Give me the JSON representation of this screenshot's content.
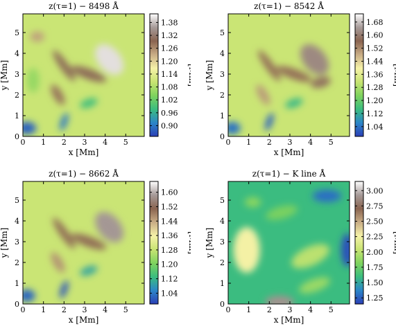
{
  "figure": {
    "colormap": [
      "#2b3fb6",
      "#2c86c8",
      "#3bbd7f",
      "#7fd35e",
      "#c8e472",
      "#f6f2a8",
      "#c9ad86",
      "#8a6450",
      "#a69a98",
      "#ffffff"
    ]
  },
  "chart_data": [
    {
      "type": "heatmap",
      "title": "z(τ=1) − 8498 Å",
      "xlabel": "x [Mm]",
      "ylabel": "y [Mm]",
      "xlim": [
        0,
        5.9
      ],
      "ylim": [
        0,
        5.9
      ],
      "xticks": [
        "0",
        "1",
        "2",
        "3",
        "4",
        "5"
      ],
      "yticks": [
        "0",
        "1",
        "2",
        "3",
        "4",
        "5"
      ],
      "colorbar": {
        "label": "[Mm]",
        "range": [
          0.85,
          1.42
        ],
        "ticks": [
          "0.90",
          "0.96",
          "1.02",
          "1.08",
          "1.14",
          "1.20",
          "1.26",
          "1.32",
          "1.38"
        ]
      },
      "features": [
        {
          "x": 4.2,
          "y": 3.7,
          "value": 1.4,
          "sx": 0.55,
          "sy": 0.85,
          "rot": -40
        },
        {
          "x": 3.2,
          "y": 3.0,
          "value": 1.3,
          "sx": 0.25,
          "sy": 0.9,
          "rot": -70
        },
        {
          "x": 2.0,
          "y": 3.4,
          "value": 1.3,
          "sx": 0.2,
          "sy": 0.9,
          "rot": -35
        },
        {
          "x": 1.7,
          "y": 2.0,
          "value": 1.28,
          "sx": 0.22,
          "sy": 0.55,
          "rot": -30
        },
        {
          "x": 0.7,
          "y": 4.8,
          "value": 1.24,
          "sx": 0.35,
          "sy": 0.25,
          "rot": 0
        },
        {
          "x": 0.2,
          "y": 0.4,
          "value": 0.88,
          "sx": 0.45,
          "sy": 0.3,
          "rot": 0
        },
        {
          "x": 2.0,
          "y": 0.7,
          "value": 0.9,
          "sx": 0.15,
          "sy": 0.45,
          "rot": 20
        },
        {
          "x": 3.2,
          "y": 1.6,
          "value": 0.98,
          "sx": 0.45,
          "sy": 0.2,
          "rot": -20
        },
        {
          "x": 0.5,
          "y": 2.7,
          "value": 1.06,
          "sx": 0.3,
          "sy": 0.6,
          "rot": 0
        }
      ]
    },
    {
      "type": "heatmap",
      "title": "z(τ=1) − 8542 Å",
      "xlabel": "x [Mm]",
      "ylabel": "y [Mm]",
      "xlim": [
        0,
        5.9
      ],
      "ylim": [
        0,
        5.9
      ],
      "xticks": [
        "0",
        "1",
        "2",
        "3",
        "4",
        "5"
      ],
      "yticks": [
        "0",
        "1",
        "2",
        "3",
        "4",
        "5"
      ],
      "colorbar": {
        "label": "[Mm]",
        "range": [
          0.98,
          1.73
        ],
        "ticks": [
          "1.04",
          "1.12",
          "1.20",
          "1.28",
          "1.36",
          "1.44",
          "1.52",
          "1.60",
          "1.68"
        ]
      },
      "features": [
        {
          "x": 4.2,
          "y": 3.7,
          "value": 1.62,
          "sx": 0.55,
          "sy": 0.85,
          "rot": -40
        },
        {
          "x": 3.2,
          "y": 3.0,
          "value": 1.55,
          "sx": 0.25,
          "sy": 0.9,
          "rot": -70
        },
        {
          "x": 2.0,
          "y": 3.4,
          "value": 1.55,
          "sx": 0.2,
          "sy": 0.9,
          "rot": -35
        },
        {
          "x": 1.7,
          "y": 2.0,
          "value": 1.5,
          "sx": 0.22,
          "sy": 0.55,
          "rot": -30
        },
        {
          "x": 4.5,
          "y": 2.6,
          "value": 1.58,
          "sx": 0.5,
          "sy": 0.25,
          "rot": -15
        },
        {
          "x": 0.2,
          "y": 0.4,
          "value": 1.04,
          "sx": 0.4,
          "sy": 0.3,
          "rot": 0
        },
        {
          "x": 2.0,
          "y": 0.7,
          "value": 1.02,
          "sx": 0.15,
          "sy": 0.45,
          "rot": 20
        },
        {
          "x": 3.2,
          "y": 1.6,
          "value": 1.14,
          "sx": 0.45,
          "sy": 0.2,
          "rot": -20
        }
      ]
    },
    {
      "type": "heatmap",
      "title": "z(τ=1) − 8662 Å",
      "xlabel": "x [Mm]",
      "ylabel": "y [Mm]",
      "xlim": [
        0,
        5.9
      ],
      "ylim": [
        0,
        5.9
      ],
      "xticks": [
        "0",
        "1",
        "2",
        "3",
        "4",
        "5"
      ],
      "yticks": [
        "0",
        "1",
        "2",
        "3",
        "4",
        "5"
      ],
      "colorbar": {
        "label": "[Mm]",
        "range": [
          0.98,
          1.66
        ],
        "ticks": [
          "1.04",
          "1.12",
          "1.20",
          "1.28",
          "1.36",
          "1.44",
          "1.52",
          "1.60"
        ]
      },
      "features": [
        {
          "x": 4.2,
          "y": 3.7,
          "value": 1.58,
          "sx": 0.55,
          "sy": 0.85,
          "rot": -40
        },
        {
          "x": 3.2,
          "y": 3.0,
          "value": 1.5,
          "sx": 0.25,
          "sy": 0.9,
          "rot": -70
        },
        {
          "x": 2.0,
          "y": 3.4,
          "value": 1.5,
          "sx": 0.2,
          "sy": 0.9,
          "rot": -35
        },
        {
          "x": 1.7,
          "y": 2.0,
          "value": 1.46,
          "sx": 0.22,
          "sy": 0.55,
          "rot": -30
        },
        {
          "x": 0.2,
          "y": 0.4,
          "value": 1.02,
          "sx": 0.4,
          "sy": 0.3,
          "rot": 0
        },
        {
          "x": 2.0,
          "y": 0.7,
          "value": 1.0,
          "sx": 0.15,
          "sy": 0.45,
          "rot": 20
        },
        {
          "x": 3.2,
          "y": 1.6,
          "value": 1.1,
          "sx": 0.45,
          "sy": 0.2,
          "rot": -20
        }
      ]
    },
    {
      "type": "heatmap",
      "title": "z(τ=1) − K line Å",
      "xlabel": "x [Mm]",
      "ylabel": "y [Mm]",
      "xlim": [
        0,
        5.9
      ],
      "ylim": [
        0,
        5.9
      ],
      "xticks": [
        "0",
        "1",
        "2",
        "3",
        "4",
        "5"
      ],
      "yticks": [
        "0",
        "1",
        "2",
        "3",
        "4",
        "5"
      ],
      "colorbar": {
        "label": "[Mm]",
        "range": [
          1.15,
          3.15
        ],
        "ticks": [
          "1.25",
          "1.50",
          "1.75",
          "2.00",
          "2.25",
          "2.50",
          "2.75",
          "3.00"
        ]
      },
      "features": [
        {
          "x": 0.9,
          "y": 2.6,
          "value": 2.25,
          "sx": 0.65,
          "sy": 1.1,
          "rot": 0
        },
        {
          "x": 2.5,
          "y": 0.1,
          "value": 2.9,
          "sx": 0.7,
          "sy": 0.3,
          "rot": 0
        },
        {
          "x": 4.0,
          "y": 2.3,
          "value": 2.0,
          "sx": 1.0,
          "sy": 0.45,
          "rot": -25
        },
        {
          "x": 2.6,
          "y": 4.4,
          "value": 1.8,
          "sx": 0.8,
          "sy": 0.3,
          "rot": -15
        },
        {
          "x": 4.8,
          "y": 5.2,
          "value": 1.3,
          "sx": 0.7,
          "sy": 0.3,
          "rot": 0
        },
        {
          "x": 5.8,
          "y": 2.6,
          "value": 1.2,
          "sx": 0.3,
          "sy": 0.8,
          "rot": 0
        },
        {
          "x": 1.2,
          "y": 4.9,
          "value": 1.85,
          "sx": 0.4,
          "sy": 0.25,
          "rot": 0
        },
        {
          "x": 4.2,
          "y": 0.9,
          "value": 1.9,
          "sx": 0.8,
          "sy": 0.3,
          "rot": -20
        }
      ]
    }
  ]
}
